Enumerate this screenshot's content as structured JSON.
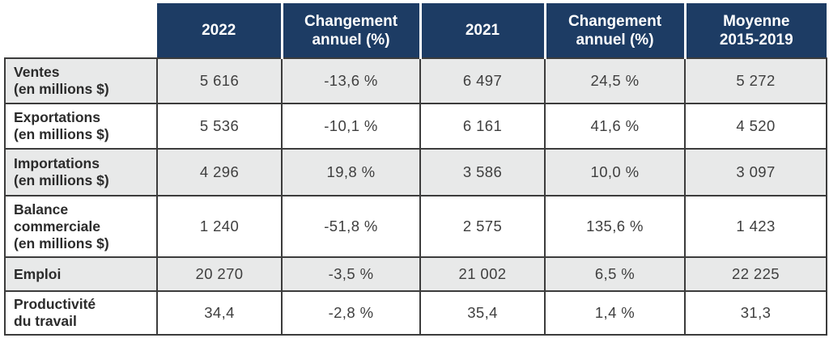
{
  "colors": {
    "header_bg": "#1d3c64",
    "header_text": "#ffffff",
    "alt_row_bg": "#e8e9e9",
    "border": "#3c3c3c",
    "label_text": "#2b2b2b",
    "value_text": "#3f3f3f"
  },
  "header": {
    "cells": [
      {
        "lines": [
          ""
        ]
      },
      {
        "lines": [
          "2022"
        ]
      },
      {
        "lines": [
          "Changement",
          "annuel (%)"
        ]
      },
      {
        "lines": [
          "2021"
        ]
      },
      {
        "lines": [
          "Changement",
          "annuel (%)"
        ]
      },
      {
        "lines": [
          "Moyenne",
          "2015-2019"
        ]
      }
    ]
  },
  "rows": [
    {
      "label_lines": [
        "Ventes",
        "(en millions $)"
      ],
      "values": [
        "5 616",
        "-13,6 %",
        "6 497",
        "24,5 %",
        "5 272"
      ]
    },
    {
      "label_lines": [
        "Exportations",
        "(en millions $)"
      ],
      "values": [
        "5 536",
        "-10,1 %",
        "6 161",
        "41,6 %",
        "4 520"
      ]
    },
    {
      "label_lines": [
        "Importations",
        "(en millions $)"
      ],
      "values": [
        "4 296",
        "19,8 %",
        "3 586",
        "10,0 %",
        "3 097"
      ]
    },
    {
      "label_lines": [
        "Balance",
        "commerciale",
        "(en millions $)"
      ],
      "values": [
        "1 240",
        "-51,8 %",
        "2 575",
        "135,6 %",
        "1 423"
      ]
    },
    {
      "label_lines": [
        "Emploi"
      ],
      "values": [
        "20 270",
        "-3,5 %",
        "21 002",
        "6,5 %",
        "22 225"
      ]
    },
    {
      "label_lines": [
        "Productivité",
        "du travail"
      ],
      "values": [
        "34,4",
        "-2,8 %",
        "35,4",
        "1,4 %",
        "31,3"
      ]
    }
  ],
  "chart_data": {
    "type": "table",
    "columns": [
      "",
      "2022",
      "Changement annuel (%)",
      "2021",
      "Changement annuel (%)",
      "Moyenne 2015-2019"
    ],
    "rows": [
      [
        "Ventes (en millions $)",
        "5 616",
        "-13,6 %",
        "6 497",
        "24,5 %",
        "5 272"
      ],
      [
        "Exportations (en millions $)",
        "5 536",
        "-10,1 %",
        "6 161",
        "41,6 %",
        "4 520"
      ],
      [
        "Importations (en millions $)",
        "4 296",
        "19,8 %",
        "3 586",
        "10,0 %",
        "3 097"
      ],
      [
        "Balance commerciale (en millions $)",
        "1 240",
        "-51,8 %",
        "2 575",
        "135,6 %",
        "1 423"
      ],
      [
        "Emploi",
        "20 270",
        "-3,5 %",
        "21 002",
        "6,5 %",
        "22 225"
      ],
      [
        "Productivité du travail",
        "34,4",
        "-2,8 %",
        "35,4",
        "1,4 %",
        "31,3"
      ]
    ]
  }
}
